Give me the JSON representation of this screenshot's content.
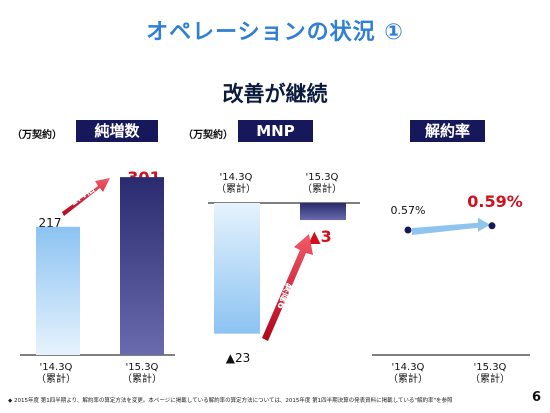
{
  "title": "オペレーションの状況 ①",
  "subtitle": "改善が継続",
  "page_number": "6",
  "footnote": "◆ 2015年度 第1四半期より、解約率の算定方法を変更。本ページに掲載している解約率の算定方法については、2015年度 第1四半期決算の発表資料に掲載している\"解約率\"を参照",
  "colors": {
    "accent_blue": "#2f7fd6",
    "header_navy": "#17175c",
    "red": "#d0101d",
    "bar_light": "#a8d2f7",
    "bar_dark": "#35357f"
  },
  "chart_data": [
    {
      "type": "bar",
      "title": "純増数",
      "unit": "（万契約）",
      "categories": [
        "'14.3Q\n（累計）",
        "'15.3Q\n（累計）"
      ],
      "values": [
        217,
        301
      ],
      "value_labels": [
        "217",
        "301"
      ],
      "annotation": "1.4倍",
      "ylim": [
        0,
        330
      ]
    },
    {
      "type": "bar",
      "title": "MNP",
      "unit": "（万契約）",
      "categories": [
        "'14.3Q\n（累計）",
        "'15.3Q\n（累計）"
      ],
      "values": [
        -23,
        -3
      ],
      "value_labels": [
        "▲23",
        "▲3"
      ],
      "annotation": "9割減",
      "ylim": [
        -25,
        0
      ]
    },
    {
      "type": "line",
      "title": "解約率",
      "categories": [
        "'14.3Q\n（累計）",
        "'15.3Q\n（累計）"
      ],
      "values": [
        0.57,
        0.59
      ],
      "value_labels": [
        "0.57%",
        "0.59%"
      ]
    }
  ]
}
